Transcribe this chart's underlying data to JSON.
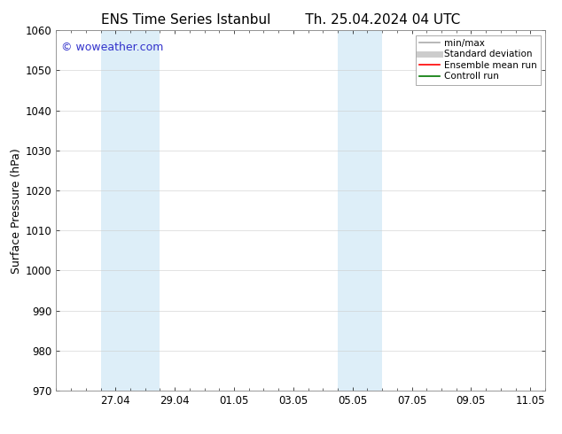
{
  "title_left": "ENS Time Series Istanbul",
  "title_right": "Th. 25.04.2024 04 UTC",
  "ylabel": "Surface Pressure (hPa)",
  "ylim": [
    970,
    1060
  ],
  "yticks": [
    970,
    980,
    990,
    1000,
    1010,
    1020,
    1030,
    1040,
    1050,
    1060
  ],
  "xlim_start": 0.0,
  "xlim_end": 16.5,
  "x_tick_labels": [
    "27.04",
    "29.04",
    "01.05",
    "03.05",
    "05.05",
    "07.05",
    "09.05",
    "11.05"
  ],
  "x_tick_positions": [
    2.0,
    4.0,
    6.0,
    8.0,
    10.0,
    12.0,
    14.0,
    16.0
  ],
  "shaded_bands": [
    {
      "x_start": 1.5,
      "x_end": 3.5
    },
    {
      "x_start": 9.5,
      "x_end": 11.0
    }
  ],
  "shaded_color": "#ddeef8",
  "watermark_text": "© woweather.com",
  "watermark_color": "#3333cc",
  "legend_entries": [
    {
      "label": "min/max",
      "color": "#aaaaaa",
      "lw": 1.2,
      "style": "solid"
    },
    {
      "label": "Standard deviation",
      "color": "#cccccc",
      "lw": 5,
      "style": "solid"
    },
    {
      "label": "Ensemble mean run",
      "color": "#ff0000",
      "lw": 1.2,
      "style": "solid"
    },
    {
      "label": "Controll run",
      "color": "#007700",
      "lw": 1.2,
      "style": "solid"
    }
  ],
  "bg_color": "#ffffff",
  "plot_bg_color": "#ffffff",
  "grid_color": "#cccccc",
  "border_color": "#888888",
  "title_fontsize": 11,
  "axis_label_fontsize": 9,
  "tick_fontsize": 8.5,
  "watermark_fontsize": 9,
  "legend_fontsize": 7.5
}
